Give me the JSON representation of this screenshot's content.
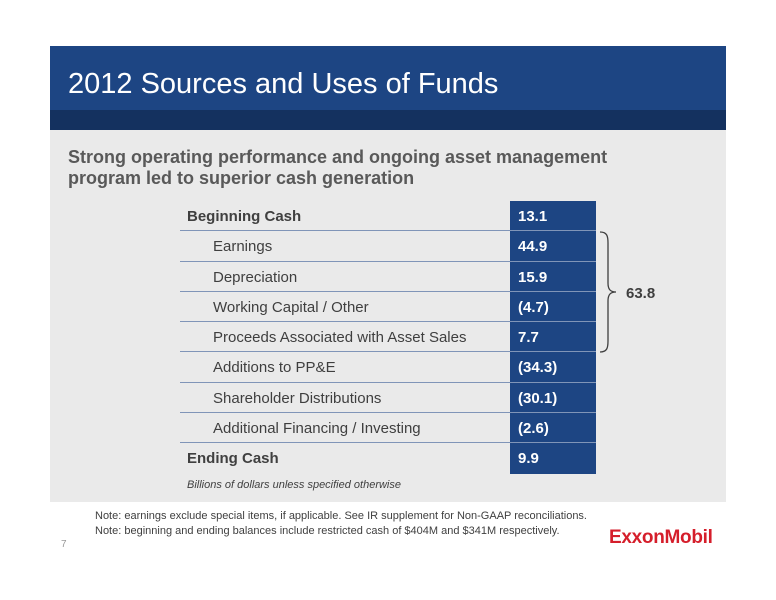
{
  "slide": {
    "title": "2012 Sources and Uses of Funds",
    "subtitle": "Strong operating performance and ongoing asset management program led to superior cash generation",
    "page_number": "7"
  },
  "table": {
    "rows": [
      {
        "label": "Beginning Cash",
        "value": "13.1"
      },
      {
        "label": "Earnings",
        "value": "44.9"
      },
      {
        "label": "Depreciation",
        "value": "15.9"
      },
      {
        "label": "Working Capital / Other",
        "value": "(4.7)"
      },
      {
        "label": "Proceeds Associated with Asset Sales",
        "value": "7.7"
      },
      {
        "label": "Additions to PP&E",
        "value": "(34.3)"
      },
      {
        "label": "Shareholder Distributions",
        "value": "(30.1)"
      },
      {
        "label": "Additional Financing / Investing",
        "value": "(2.6)"
      },
      {
        "label": "Ending Cash",
        "value": "9.9"
      }
    ],
    "bracket_total": "63.8",
    "footnote": "Billions of dollars unless specified otherwise"
  },
  "notes": [
    "Note: earnings exclude special items, if applicable. See IR supplement for Non-GAAP reconciliations.",
    "Note: beginning and ending balances include restricted cash of $404M and $341M respectively."
  ],
  "logo": {
    "text": "ExxonMobil"
  },
  "colors": {
    "header_blue": "#1d4583",
    "header_stripe": "#14315f",
    "content_gray": "#eaeaea",
    "logo_red": "#d51e2b"
  }
}
